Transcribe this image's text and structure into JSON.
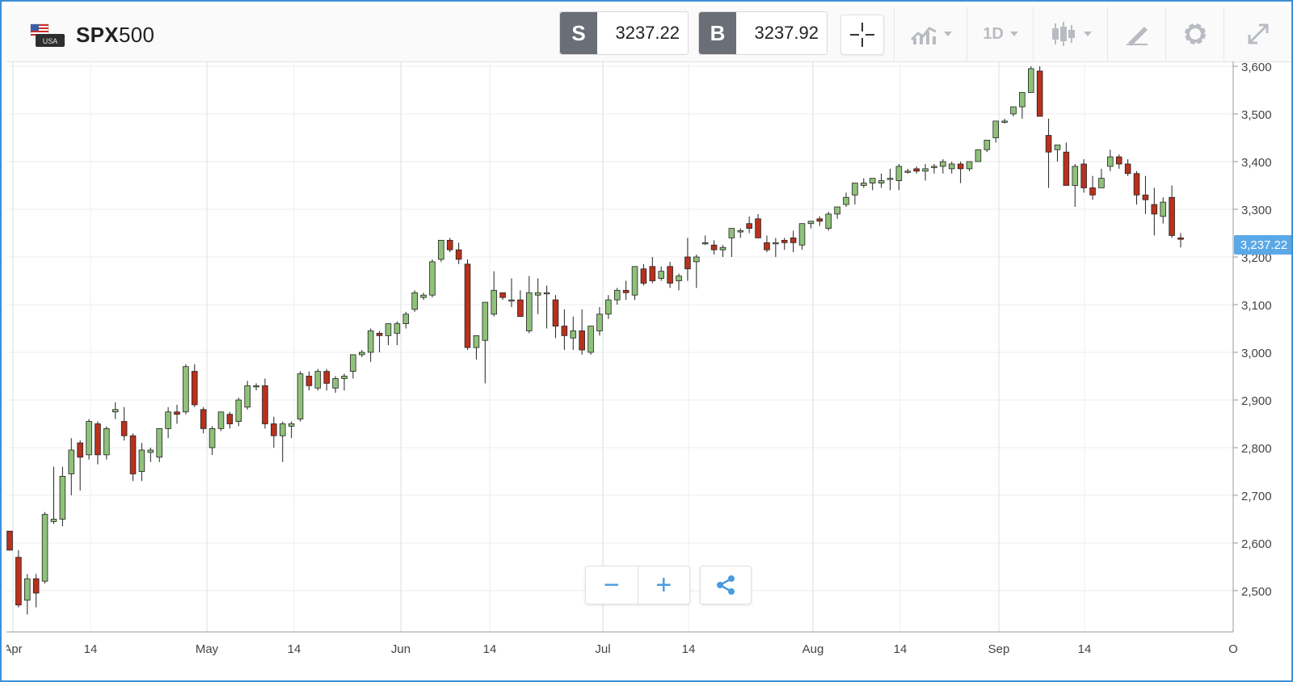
{
  "header": {
    "flag_label": "USA",
    "symbol_bold": "SPX",
    "symbol_rest": "500",
    "sell": {
      "label": "S",
      "price": "3237.22"
    },
    "buy": {
      "label": "B",
      "price": "3237.92"
    },
    "timeframe": "1D",
    "icons": [
      "crosshair-icon",
      "indicators-icon",
      "timeframe-dropdown",
      "candlestick-icon",
      "drawing-icon",
      "gear-icon",
      "fullscreen-icon"
    ]
  },
  "controls": {
    "zoom_out": "−",
    "zoom_in": "+"
  },
  "colors": {
    "up": "#8fc17a",
    "down": "#b9311d",
    "accent": "#5aa8e6",
    "frame": "#3d8fd6",
    "grid": "#e6e6e6"
  },
  "chart_data": {
    "type": "candlestick",
    "symbol": "SPX500",
    "last_price": "3,237.22",
    "y_ticks": [
      "3,600",
      "3,500",
      "3,400",
      "3,300",
      "3,200",
      "3,100",
      "3,000",
      "2,900",
      "2,800",
      "2,700",
      "2,600",
      "2,500"
    ],
    "ylim": [
      2420,
      3600
    ],
    "x_labels": [
      "Apr",
      "14",
      "May",
      "14",
      "Jun",
      "14",
      "Jul",
      "14",
      "Aug",
      "14",
      "Sep",
      "14",
      "O"
    ],
    "grid": true,
    "candles": [
      [
        2625,
        2625,
        2585,
        2585
      ],
      [
        2570,
        2585,
        2465,
        2470
      ],
      [
        2480,
        2535,
        2450,
        2525
      ],
      [
        2525,
        2535,
        2465,
        2495
      ],
      [
        2520,
        2665,
        2515,
        2660
      ],
      [
        2645,
        2760,
        2640,
        2650
      ],
      [
        2650,
        2760,
        2635,
        2740
      ],
      [
        2745,
        2820,
        2700,
        2795
      ],
      [
        2810,
        2815,
        2710,
        2780
      ],
      [
        2785,
        2860,
        2775,
        2855
      ],
      [
        2850,
        2855,
        2765,
        2785
      ],
      [
        2785,
        2845,
        2775,
        2840
      ],
      [
        2875,
        2895,
        2860,
        2880
      ],
      [
        2855,
        2885,
        2815,
        2825
      ],
      [
        2825,
        2830,
        2730,
        2745
      ],
      [
        2750,
        2810,
        2730,
        2795
      ],
      [
        2790,
        2800,
        2770,
        2795
      ],
      [
        2780,
        2840,
        2770,
        2840
      ],
      [
        2840,
        2885,
        2820,
        2875
      ],
      [
        2875,
        2890,
        2850,
        2870
      ],
      [
        2875,
        2975,
        2870,
        2970
      ],
      [
        2960,
        2975,
        2885,
        2890
      ],
      [
        2880,
        2885,
        2830,
        2840
      ],
      [
        2800,
        2845,
        2785,
        2840
      ],
      [
        2840,
        2875,
        2835,
        2875
      ],
      [
        2870,
        2875,
        2840,
        2850
      ],
      [
        2855,
        2905,
        2845,
        2900
      ],
      [
        2885,
        2940,
        2880,
        2930
      ],
      [
        2930,
        2935,
        2920,
        2930
      ],
      [
        2930,
        2945,
        2840,
        2850
      ],
      [
        2850,
        2865,
        2800,
        2825
      ],
      [
        2825,
        2855,
        2770,
        2850
      ],
      [
        2845,
        2855,
        2820,
        2850
      ],
      [
        2860,
        2960,
        2855,
        2955
      ],
      [
        2950,
        2960,
        2920,
        2930
      ],
      [
        2925,
        2965,
        2920,
        2960
      ],
      [
        2960,
        2965,
        2920,
        2935
      ],
      [
        2925,
        2950,
        2915,
        2945
      ],
      [
        2945,
        2955,
        2920,
        2950
      ],
      [
        2960,
        2995,
        2945,
        2995
      ],
      [
        2995,
        3005,
        2990,
        3000
      ],
      [
        3000,
        3050,
        2980,
        3045
      ],
      [
        3040,
        3045,
        3000,
        3035
      ],
      [
        3035,
        3060,
        3015,
        3060
      ],
      [
        3040,
        3065,
        3015,
        3060
      ],
      [
        3060,
        3085,
        3050,
        3080
      ],
      [
        3090,
        3130,
        3085,
        3125
      ],
      [
        3115,
        3125,
        3110,
        3120
      ],
      [
        3120,
        3195,
        3115,
        3190
      ],
      [
        3195,
        3235,
        3190,
        3235
      ],
      [
        3235,
        3240,
        3210,
        3215
      ],
      [
        3215,
        3230,
        3185,
        3195
      ],
      [
        3185,
        3195,
        3005,
        3010
      ],
      [
        3010,
        3035,
        2985,
        3035
      ],
      [
        3025,
        3105,
        2935,
        3105
      ],
      [
        3080,
        3170,
        3075,
        3130
      ],
      [
        3125,
        3125,
        3110,
        3115
      ],
      [
        3110,
        3155,
        3095,
        3110
      ],
      [
        3110,
        3130,
        3075,
        3075
      ],
      [
        3045,
        3160,
        3040,
        3125
      ],
      [
        3120,
        3155,
        3080,
        3125
      ],
      [
        3125,
        3140,
        3050,
        3125
      ],
      [
        3110,
        3120,
        3030,
        3055
      ],
      [
        3055,
        3090,
        3005,
        3035
      ],
      [
        3030,
        3075,
        3005,
        3045
      ],
      [
        3045,
        3090,
        2995,
        3005
      ],
      [
        3000,
        3045,
        2995,
        3055
      ],
      [
        3045,
        3095,
        3035,
        3080
      ],
      [
        3080,
        3120,
        3070,
        3110
      ],
      [
        3110,
        3135,
        3100,
        3130
      ],
      [
        3130,
        3150,
        3110,
        3125
      ],
      [
        3120,
        3175,
        3110,
        3180
      ],
      [
        3175,
        3185,
        3140,
        3145
      ],
      [
        3180,
        3200,
        3145,
        3150
      ],
      [
        3155,
        3180,
        3150,
        3170
      ],
      [
        3180,
        3190,
        3135,
        3145
      ],
      [
        3150,
        3165,
        3130,
        3160
      ],
      [
        3200,
        3240,
        3150,
        3175
      ],
      [
        3190,
        3205,
        3135,
        3200
      ],
      [
        3230,
        3245,
        3225,
        3230
      ],
      [
        3225,
        3235,
        3205,
        3215
      ],
      [
        3215,
        3225,
        3200,
        3220
      ],
      [
        3240,
        3260,
        3200,
        3260
      ],
      [
        3255,
        3260,
        3240,
        3255
      ],
      [
        3270,
        3285,
        3250,
        3260
      ],
      [
        3280,
        3290,
        3240,
        3240
      ],
      [
        3230,
        3245,
        3210,
        3215
      ],
      [
        3230,
        3240,
        3200,
        3230
      ],
      [
        3235,
        3240,
        3215,
        3230
      ],
      [
        3240,
        3255,
        3210,
        3230
      ],
      [
        3225,
        3270,
        3215,
        3270
      ],
      [
        3270,
        3275,
        3260,
        3275
      ],
      [
        3280,
        3285,
        3265,
        3275
      ],
      [
        3260,
        3295,
        3255,
        3290
      ],
      [
        3290,
        3305,
        3280,
        3305
      ],
      [
        3310,
        3335,
        3305,
        3325
      ],
      [
        3330,
        3355,
        3310,
        3355
      ],
      [
        3350,
        3365,
        3345,
        3355
      ],
      [
        3355,
        3365,
        3340,
        3365
      ],
      [
        3355,
        3375,
        3345,
        3360
      ],
      [
        3365,
        3385,
        3340,
        3365
      ],
      [
        3360,
        3395,
        3340,
        3390
      ],
      [
        3380,
        3385,
        3375,
        3380
      ],
      [
        3385,
        3390,
        3375,
        3380
      ],
      [
        3380,
        3395,
        3360,
        3385
      ],
      [
        3390,
        3395,
        3375,
        3390
      ],
      [
        3390,
        3405,
        3375,
        3400
      ],
      [
        3385,
        3400,
        3375,
        3395
      ],
      [
        3395,
        3400,
        3355,
        3385
      ],
      [
        3385,
        3400,
        3380,
        3400
      ],
      [
        3400,
        3425,
        3400,
        3425
      ],
      [
        3425,
        3445,
        3420,
        3445
      ],
      [
        3450,
        3485,
        3440,
        3485
      ],
      [
        3485,
        3490,
        3480,
        3485
      ],
      [
        3500,
        3515,
        3495,
        3515
      ],
      [
        3515,
        3540,
        3490,
        3545
      ],
      [
        3545,
        3600,
        3545,
        3595
      ],
      [
        3590,
        3600,
        3500,
        3495
      ],
      [
        3455,
        3490,
        3345,
        3420
      ],
      [
        3425,
        3430,
        3400,
        3435
      ],
      [
        3420,
        3440,
        3350,
        3350
      ],
      [
        3350,
        3395,
        3305,
        3390
      ],
      [
        3395,
        3405,
        3335,
        3345
      ],
      [
        3345,
        3370,
        3320,
        3330
      ],
      [
        3345,
        3385,
        3345,
        3365
      ],
      [
        3390,
        3425,
        3380,
        3410
      ],
      [
        3410,
        3415,
        3385,
        3395
      ],
      [
        3395,
        3405,
        3370,
        3375
      ],
      [
        3375,
        3380,
        3310,
        3330
      ],
      [
        3330,
        3370,
        3290,
        3320
      ],
      [
        3310,
        3345,
        3245,
        3290
      ],
      [
        3285,
        3325,
        3270,
        3315
      ],
      [
        3325,
        3350,
        3240,
        3245
      ],
      [
        3240,
        3250,
        3220,
        3237
      ]
    ]
  }
}
